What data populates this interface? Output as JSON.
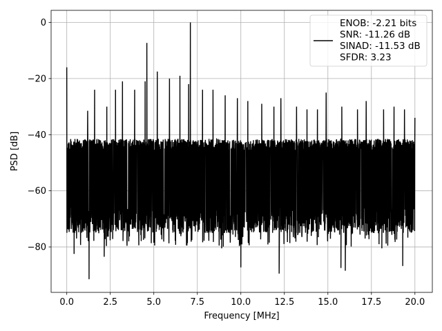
{
  "chart_data": {
    "type": "line",
    "xlabel": "Frequency [MHz]",
    "ylabel": "PSD [dB]",
    "xlim": [
      -0.9,
      21.0
    ],
    "ylim": [
      -96.2,
      4.3
    ],
    "xticks": [
      0.0,
      2.5,
      5.0,
      7.5,
      10.0,
      12.5,
      15.0,
      17.5,
      20.0
    ],
    "xtick_labels": [
      "0.0",
      "2.5",
      "5.0",
      "7.5",
      "10.0",
      "12.5",
      "15.0",
      "17.5",
      "20.0"
    ],
    "yticks": [
      0,
      -20,
      -40,
      -60,
      -80
    ],
    "ytick_labels": [
      "0",
      "−20",
      "−40",
      "−60",
      "−80"
    ],
    "grid": true,
    "legend_position": "top-right",
    "series": [
      {
        "color": "#000000",
        "noise_floor_band_db": [
          -70,
          -40
        ],
        "spurs": [
          {
            "x": 0.0,
            "y": -16
          },
          {
            "x": 1.2,
            "y": -31.5
          },
          {
            "x": 1.6,
            "y": -24
          },
          {
            "x": 2.3,
            "y": -30
          },
          {
            "x": 2.8,
            "y": -24
          },
          {
            "x": 3.2,
            "y": -21
          },
          {
            "x": 3.9,
            "y": -24
          },
          {
            "x": 4.5,
            "y": -21
          },
          {
            "x": 4.6,
            "y": -7.3
          },
          {
            "x": 5.2,
            "y": -17.5
          },
          {
            "x": 5.9,
            "y": -20
          },
          {
            "x": 6.5,
            "y": -19
          },
          {
            "x": 7.0,
            "y": -22
          },
          {
            "x": 7.1,
            "y": 0.0
          },
          {
            "x": 7.8,
            "y": -24
          },
          {
            "x": 8.4,
            "y": -24
          },
          {
            "x": 9.1,
            "y": -26
          },
          {
            "x": 9.8,
            "y": -27
          },
          {
            "x": 10.4,
            "y": -28
          },
          {
            "x": 11.2,
            "y": -29
          },
          {
            "x": 11.9,
            "y": -30
          },
          {
            "x": 12.3,
            "y": -27
          },
          {
            "x": 13.2,
            "y": -30
          },
          {
            "x": 13.8,
            "y": -31
          },
          {
            "x": 14.4,
            "y": -31
          },
          {
            "x": 14.9,
            "y": -25
          },
          {
            "x": 15.8,
            "y": -30
          },
          {
            "x": 16.7,
            "y": -31
          },
          {
            "x": 17.2,
            "y": -28
          },
          {
            "x": 18.2,
            "y": -31
          },
          {
            "x": 18.8,
            "y": -30
          },
          {
            "x": 19.4,
            "y": -31
          },
          {
            "x": 20.0,
            "y": -34
          }
        ],
        "dips": [
          {
            "x": 1.28,
            "y": -91.5
          },
          {
            "x": 2.15,
            "y": -83.5
          },
          {
            "x": 0.42,
            "y": -82.5
          },
          {
            "x": 5.05,
            "y": -79.5
          },
          {
            "x": 10.0,
            "y": -87.3
          },
          {
            "x": 12.2,
            "y": -89.5
          },
          {
            "x": 15.75,
            "y": -87.5
          },
          {
            "x": 16.0,
            "y": -88.5
          },
          {
            "x": 19.3,
            "y": -86.8
          },
          {
            "x": 18.1,
            "y": -80.5
          },
          {
            "x": 8.9,
            "y": -80.5
          },
          {
            "x": 6.9,
            "y": -79.5
          }
        ]
      }
    ],
    "legend": {
      "lines": [
        "ENOB: -2.21 bits",
        "SNR: -11.26 dB",
        "SINAD: -11.53 dB",
        "SFDR: 3.23"
      ]
    }
  }
}
